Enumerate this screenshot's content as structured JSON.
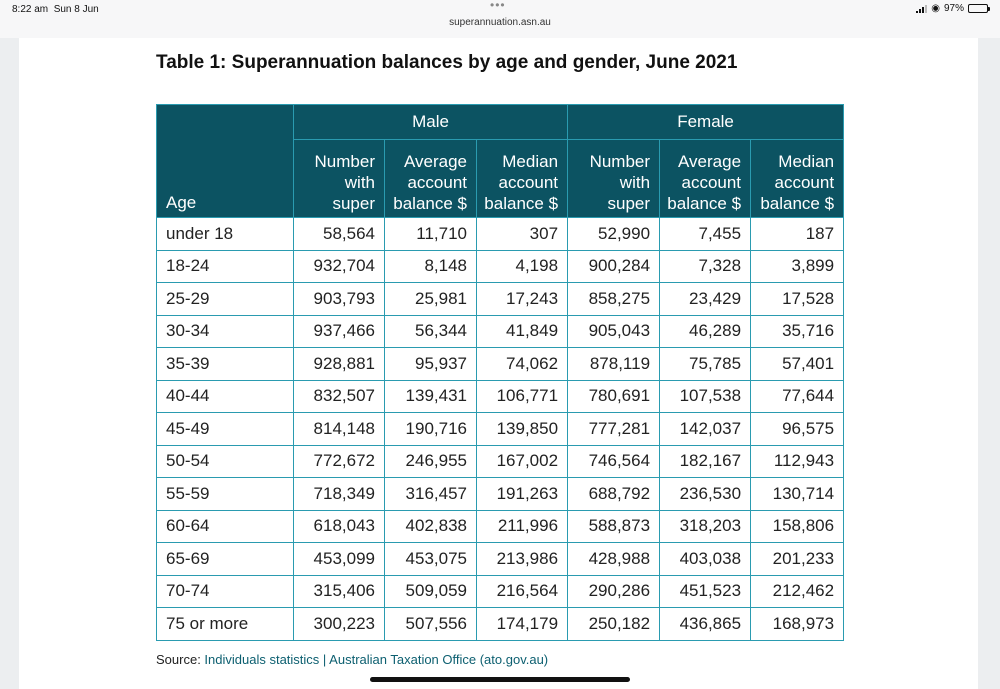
{
  "status_bar": {
    "time": "8:22 am",
    "date": "Sun 8 Jun",
    "url": "superannuation.asn.au",
    "battery_pct": "97%",
    "battery_level": 0.97
  },
  "document": {
    "title": "Table 1: Superannuation balances by age and gender, June 2021",
    "table": {
      "age_header": "Age",
      "groups": [
        "Male",
        "Female"
      ],
      "subheaders": [
        "Number\nwith\nsuper",
        "Average\naccount\nbalance $",
        "Median\naccount\nbalance $",
        "Number\nwith\nsuper",
        "Average\naccount\nbalance $",
        "Median\naccount\nbalance $"
      ],
      "rows": [
        [
          "under 18",
          "58,564",
          "11,710",
          "307",
          "52,990",
          "7,455",
          "187"
        ],
        [
          "18-24",
          "932,704",
          "8,148",
          "4,198",
          "900,284",
          "7,328",
          "3,899"
        ],
        [
          "25-29",
          "903,793",
          "25,981",
          "17,243",
          "858,275",
          "23,429",
          "17,528"
        ],
        [
          "30-34",
          "937,466",
          "56,344",
          "41,849",
          "905,043",
          "46,289",
          "35,716"
        ],
        [
          "35-39",
          "928,881",
          "95,937",
          "74,062",
          "878,119",
          "75,785",
          "57,401"
        ],
        [
          "40-44",
          "832,507",
          "139,431",
          "106,771",
          "780,691",
          "107,538",
          "77,644"
        ],
        [
          "45-49",
          "814,148",
          "190,716",
          "139,850",
          "777,281",
          "142,037",
          "96,575"
        ],
        [
          "50-54",
          "772,672",
          "246,955",
          "167,002",
          "746,564",
          "182,167",
          "112,943"
        ],
        [
          "55-59",
          "718,349",
          "316,457",
          "191,263",
          "688,792",
          "236,530",
          "130,714"
        ],
        [
          "60-64",
          "618,043",
          "402,838",
          "211,996",
          "588,873",
          "318,203",
          "158,806"
        ],
        [
          "65-69",
          "453,099",
          "453,075",
          "213,986",
          "428,988",
          "403,038",
          "201,233"
        ],
        [
          "70-74",
          "315,406",
          "509,059",
          "216,564",
          "290,286",
          "451,523",
          "212,462"
        ],
        [
          "75 or more",
          "300,223",
          "507,556",
          "174,179",
          "250,182",
          "436,865",
          "168,973"
        ]
      ]
    },
    "source": {
      "prefix": "Source: ",
      "link": "Individuals statistics | Australian Taxation Office (ato.gov.au)"
    }
  },
  "colors": {
    "header_bg": "#0c5362",
    "border": "#2a9bb0",
    "link": "#0c5f70"
  }
}
